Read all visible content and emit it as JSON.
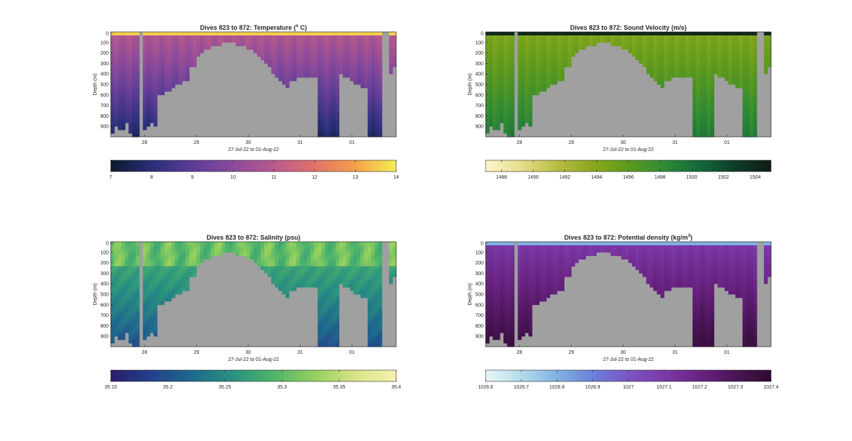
{
  "figure": {
    "background": "#ffffff",
    "land_color": "#a0a0a0"
  },
  "chart_data": [
    {
      "type": "heatmap",
      "title": "Dives 823 to 872: Temperature (",
      "title_sup": "o",
      "title_suffix": " C)",
      "ylabel": "Depth (m)",
      "xlabel": "27-Jul-22 to 01-Aug-22",
      "yticks": [
        "0",
        "100",
        "200",
        "300",
        "400",
        "500",
        "600",
        "700",
        "800",
        "900"
      ],
      "ylim": [
        0,
        1000
      ],
      "xticks": [
        "28",
        "29",
        "30",
        "31",
        "01"
      ],
      "xlim": [
        27.35,
        32.85
      ],
      "colorbar": {
        "ticks": [
          "7",
          "8",
          "9",
          "10",
          "11",
          "12",
          "13",
          "14"
        ],
        "range": [
          7,
          14
        ],
        "colors": [
          "#0b1a2c",
          "#2a2f78",
          "#5b3c96",
          "#8b4a9a",
          "#b85a8c",
          "#e0726a",
          "#f6a04a",
          "#f2f055"
        ]
      },
      "surface_value": 13.6,
      "deep_value": 7.6,
      "inverted_profile": false
    },
    {
      "type": "heatmap",
      "title": "Dives 823 to 872: Sound Velocity (m/s)",
      "title_sup": "",
      "title_suffix": "",
      "ylabel": "Depth (m)",
      "xlabel": "27-Jul-22 to 01-Aug-22",
      "yticks": [
        "0",
        "100",
        "200",
        "300",
        "400",
        "500",
        "600",
        "700",
        "800",
        "900"
      ],
      "ylim": [
        0,
        1000
      ],
      "xticks": [
        "28",
        "29",
        "30",
        "31",
        "01"
      ],
      "xlim": [
        27.35,
        32.85
      ],
      "colorbar": {
        "ticks": [
          "1488",
          "1490",
          "1492",
          "1494",
          "1496",
          "1498",
          "1500",
          "1502",
          "1504"
        ],
        "range": [
          1487,
          1505
        ],
        "colors": [
          "#fdf6cc",
          "#e6dd8a",
          "#b8bd45",
          "#8aa81c",
          "#5e9a1e",
          "#2f8a35",
          "#14683a",
          "#0d3d28",
          "#111b13"
        ]
      },
      "surface_value": 1503.5,
      "deep_value": 1496.5,
      "inverted_profile": false
    },
    {
      "type": "heatmap",
      "title": "Dives 823 to 872: Salinity (psu)",
      "title_sup": "",
      "title_suffix": "",
      "ylabel": "Depth (m)",
      "xlabel": "27-Jul-22 to 01-Aug-22",
      "yticks": [
        "0",
        "100",
        "200",
        "300",
        "400",
        "500",
        "600",
        "700",
        "800",
        "900"
      ],
      "ylim": [
        0,
        1000
      ],
      "xticks": [
        "28",
        "29",
        "30",
        "31",
        "01"
      ],
      "xlim": [
        27.35,
        32.85
      ],
      "colorbar": {
        "ticks": [
          "35.15",
          "35.2",
          "35.25",
          "35.3",
          "35.35",
          "35.4"
        ],
        "range": [
          35.15,
          35.4
        ],
        "colors": [
          "#2a1d6b",
          "#24408c",
          "#1f6a8c",
          "#2a9180",
          "#4fb56a",
          "#95cf5e",
          "#d8e486",
          "#f6f1b0"
        ]
      },
      "surface_value": 35.24,
      "deep_value": 35.22,
      "inverted_profile": false
    },
    {
      "type": "heatmap",
      "title": "Dives 823 to 872: Potential density (kg/m",
      "title_sup": "3",
      "title_suffix": ")",
      "ylabel": "Depth (m)",
      "xlabel": "27-Jul-22 to 01-Aug-22",
      "yticks": [
        "0",
        "100",
        "200",
        "300",
        "400",
        "500",
        "600",
        "700",
        "800",
        "900"
      ],
      "ylim": [
        0,
        1000
      ],
      "xticks": [
        "28",
        "29",
        "30",
        "31",
        "01"
      ],
      "xlim": [
        27.35,
        32.85
      ],
      "colorbar": {
        "ticks": [
          "1026.6",
          "1026.7",
          "1026.8",
          "1026.9",
          "1027",
          "1027.1",
          "1027.2",
          "1027.3",
          "1027.4"
        ],
        "range": [
          1026.6,
          1027.4
        ],
        "colors": [
          "#eaf6f6",
          "#b4dbeb",
          "#7fb2e4",
          "#6b80da",
          "#7a55c4",
          "#7b39a8",
          "#6a2382",
          "#4a1457",
          "#2e0a2c"
        ]
      },
      "surface_value": 1026.7,
      "deep_value": 1027.3,
      "inverted_profile": true
    }
  ]
}
